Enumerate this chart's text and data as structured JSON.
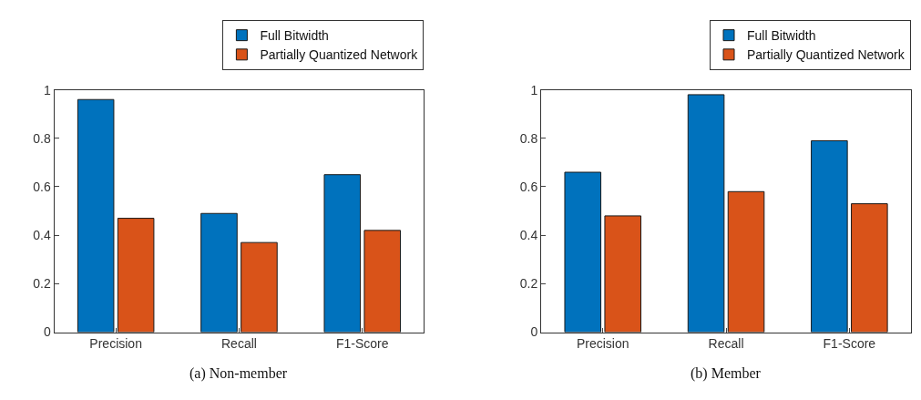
{
  "chart_data": [
    {
      "type": "bar",
      "categories": [
        "Precision",
        "Recall",
        "F1-Score"
      ],
      "series": [
        {
          "name": "Full Bitwidth",
          "color": "#0072bd",
          "values": [
            0.96,
            0.49,
            0.65
          ]
        },
        {
          "name": "Partially Quantized Network",
          "color": "#d95319",
          "values": [
            0.47,
            0.37,
            0.42
          ]
        }
      ],
      "ylim": [
        0,
        1
      ],
      "yticks": [
        0,
        0.2,
        0.4,
        0.6,
        0.8,
        1
      ],
      "legend": "top right",
      "annotations": [
        "(a) Non-member"
      ]
    },
    {
      "type": "bar",
      "categories": [
        "Precision",
        "Recall",
        "F1-Score"
      ],
      "series": [
        {
          "name": "Full Bitwidth",
          "color": "#0072bd",
          "values": [
            0.66,
            0.98,
            0.79
          ]
        },
        {
          "name": "Partially Quantized Network",
          "color": "#d95319",
          "values": [
            0.48,
            0.58,
            0.53
          ]
        }
      ],
      "ylim": [
        0,
        1
      ],
      "yticks": [
        0,
        0.2,
        0.4,
        0.6,
        0.8,
        1
      ],
      "legend": "top right",
      "annotations": [
        "(b) Member"
      ]
    }
  ]
}
